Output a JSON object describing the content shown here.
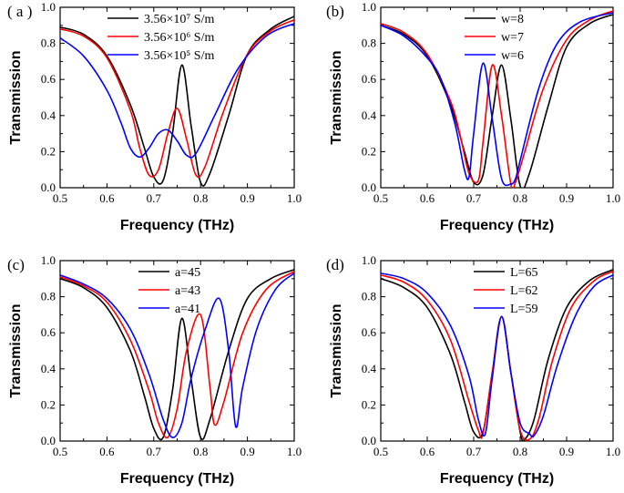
{
  "chart_data": [
    {
      "type": "line",
      "panel_label": "( a )",
      "xlabel": "Frequency (THz)",
      "ylabel": "Transmission",
      "xlim": [
        0.5,
        1.0
      ],
      "ylim": [
        0.0,
        1.0
      ],
      "xticks": [
        "0.5",
        "0.6",
        "0.7",
        "0.8",
        "0.9",
        "1.0"
      ],
      "yticks": [
        "0.0",
        "0.2",
        "0.4",
        "0.6",
        "0.8",
        "1.0"
      ],
      "legend_position": "top-right",
      "series": [
        {
          "name": "3.56×10⁷ S/m",
          "color": "#000000",
          "x": [
            0.5,
            0.55,
            0.6,
            0.65,
            0.68,
            0.7,
            0.72,
            0.74,
            0.76,
            0.78,
            0.8,
            0.82,
            0.86,
            0.9,
            0.95,
            1.0
          ],
          "y": [
            0.89,
            0.85,
            0.73,
            0.46,
            0.22,
            0.06,
            0.04,
            0.3,
            0.68,
            0.34,
            0.03,
            0.08,
            0.4,
            0.74,
            0.88,
            0.95
          ]
        },
        {
          "name": "3.56×10⁶ S/m",
          "color": "#ff0000",
          "x": [
            0.5,
            0.55,
            0.6,
            0.65,
            0.67,
            0.69,
            0.71,
            0.73,
            0.75,
            0.77,
            0.79,
            0.81,
            0.85,
            0.9,
            0.95,
            1.0
          ],
          "y": [
            0.88,
            0.84,
            0.72,
            0.43,
            0.22,
            0.07,
            0.1,
            0.3,
            0.44,
            0.27,
            0.07,
            0.12,
            0.43,
            0.74,
            0.87,
            0.93
          ]
        },
        {
          "name": "3.56×10⁵ S/m",
          "color": "#0000ff",
          "x": [
            0.5,
            0.55,
            0.6,
            0.63,
            0.65,
            0.67,
            0.69,
            0.71,
            0.73,
            0.75,
            0.77,
            0.79,
            0.83,
            0.88,
            0.94,
            1.0
          ],
          "y": [
            0.83,
            0.73,
            0.54,
            0.36,
            0.22,
            0.17,
            0.22,
            0.3,
            0.32,
            0.26,
            0.18,
            0.19,
            0.4,
            0.66,
            0.84,
            0.91
          ]
        }
      ]
    },
    {
      "type": "line",
      "panel_label": "(b)",
      "xlabel": "Frequency (THz)",
      "ylabel": "Transmission",
      "xlim": [
        0.5,
        1.0
      ],
      "ylim": [
        0.0,
        1.0
      ],
      "xticks": [
        "0.5",
        "0.6",
        "0.7",
        "0.8",
        "0.9",
        "1.0"
      ],
      "yticks": [
        "0.0",
        "0.2",
        "0.4",
        "0.6",
        "0.8",
        "1.0"
      ],
      "legend_position": "top-right",
      "series": [
        {
          "name": "w=8",
          "color": "#000000",
          "x": [
            0.5,
            0.55,
            0.6,
            0.65,
            0.68,
            0.7,
            0.72,
            0.74,
            0.76,
            0.78,
            0.8,
            0.82,
            0.86,
            0.9,
            0.95,
            1.0
          ],
          "y": [
            0.9,
            0.85,
            0.73,
            0.46,
            0.2,
            0.03,
            0.07,
            0.4,
            0.68,
            0.38,
            0.01,
            0.08,
            0.45,
            0.78,
            0.91,
            0.96
          ]
        },
        {
          "name": "w=7",
          "color": "#ff0000",
          "x": [
            0.5,
            0.55,
            0.6,
            0.65,
            0.67,
            0.69,
            0.71,
            0.72,
            0.74,
            0.76,
            0.78,
            0.79,
            0.81,
            0.85,
            0.9,
            0.95,
            1.0
          ],
          "y": [
            0.91,
            0.86,
            0.74,
            0.48,
            0.3,
            0.08,
            0.04,
            0.25,
            0.68,
            0.4,
            0.02,
            0.03,
            0.2,
            0.55,
            0.82,
            0.93,
            0.98
          ]
        },
        {
          "name": "w=6",
          "color": "#0000ff",
          "x": [
            0.5,
            0.55,
            0.6,
            0.63,
            0.66,
            0.68,
            0.69,
            0.7,
            0.72,
            0.74,
            0.76,
            0.78,
            0.79,
            0.8,
            0.84,
            0.88,
            0.93,
            1.0
          ],
          "y": [
            0.9,
            0.84,
            0.72,
            0.6,
            0.35,
            0.1,
            0.06,
            0.3,
            0.69,
            0.38,
            0.05,
            0.02,
            0.05,
            0.15,
            0.55,
            0.8,
            0.92,
            0.97
          ]
        }
      ]
    },
    {
      "type": "line",
      "panel_label": "(c)",
      "xlabel": "Frequency (THz)",
      "ylabel": "Transmission",
      "xlim": [
        0.5,
        1.0
      ],
      "ylim": [
        0.0,
        1.0
      ],
      "xticks": [
        "0.5",
        "0.6",
        "0.7",
        "0.8",
        "0.9",
        "1.0"
      ],
      "yticks": [
        "0.0",
        "0.2",
        "0.4",
        "0.6",
        "0.8",
        "1.0"
      ],
      "legend_position": "top-center",
      "series": [
        {
          "name": "a=45",
          "color": "#000000",
          "x": [
            0.5,
            0.55,
            0.6,
            0.65,
            0.68,
            0.7,
            0.72,
            0.74,
            0.76,
            0.78,
            0.8,
            0.82,
            0.86,
            0.9,
            0.95,
            1.0
          ],
          "y": [
            0.9,
            0.85,
            0.74,
            0.5,
            0.25,
            0.07,
            0.02,
            0.28,
            0.68,
            0.34,
            0.02,
            0.12,
            0.5,
            0.79,
            0.9,
            0.95
          ]
        },
        {
          "name": "a=43",
          "color": "#ff0000",
          "x": [
            0.5,
            0.55,
            0.6,
            0.65,
            0.69,
            0.71,
            0.73,
            0.75,
            0.77,
            0.8,
            0.82,
            0.83,
            0.85,
            0.89,
            0.94,
            1.0
          ],
          "y": [
            0.91,
            0.86,
            0.77,
            0.56,
            0.28,
            0.1,
            0.02,
            0.18,
            0.5,
            0.7,
            0.3,
            0.09,
            0.22,
            0.6,
            0.84,
            0.94
          ]
        },
        {
          "name": "a=41",
          "color": "#0000ff",
          "x": [
            0.5,
            0.55,
            0.6,
            0.65,
            0.69,
            0.72,
            0.74,
            0.76,
            0.78,
            0.81,
            0.84,
            0.86,
            0.875,
            0.89,
            0.92,
            0.96,
            1.0
          ],
          "y": [
            0.92,
            0.87,
            0.79,
            0.62,
            0.37,
            0.12,
            0.02,
            0.1,
            0.35,
            0.62,
            0.79,
            0.5,
            0.08,
            0.3,
            0.62,
            0.84,
            0.93
          ]
        }
      ]
    },
    {
      "type": "line",
      "panel_label": "(d)",
      "xlabel": "Frequency (THz)",
      "ylabel": "Transmission",
      "xlim": [
        0.5,
        1.0
      ],
      "ylim": [
        0.0,
        1.0
      ],
      "xticks": [
        "0.5",
        "0.6",
        "0.7",
        "0.8",
        "0.9",
        "1.0"
      ],
      "yticks": [
        "0.0",
        "0.2",
        "0.4",
        "0.6",
        "0.8",
        "1.0"
      ],
      "legend_position": "top-center",
      "series": [
        {
          "name": "L=65",
          "color": "#000000",
          "x": [
            0.5,
            0.55,
            0.6,
            0.65,
            0.68,
            0.7,
            0.72,
            0.74,
            0.76,
            0.78,
            0.8,
            0.81,
            0.83,
            0.86,
            0.9,
            0.95,
            1.0
          ],
          "y": [
            0.9,
            0.85,
            0.74,
            0.48,
            0.22,
            0.05,
            0.05,
            0.38,
            0.69,
            0.38,
            0.05,
            0.01,
            0.12,
            0.45,
            0.74,
            0.89,
            0.95
          ]
        },
        {
          "name": "L=62",
          "color": "#ff0000",
          "x": [
            0.5,
            0.55,
            0.6,
            0.65,
            0.69,
            0.71,
            0.72,
            0.74,
            0.76,
            0.78,
            0.8,
            0.82,
            0.84,
            0.87,
            0.91,
            0.96,
            1.0
          ],
          "y": [
            0.92,
            0.88,
            0.78,
            0.56,
            0.22,
            0.06,
            0.04,
            0.38,
            0.69,
            0.38,
            0.06,
            0.01,
            0.12,
            0.45,
            0.74,
            0.89,
            0.94
          ]
        },
        {
          "name": "L=59",
          "color": "#0000ff",
          "x": [
            0.5,
            0.55,
            0.6,
            0.65,
            0.69,
            0.71,
            0.725,
            0.74,
            0.76,
            0.78,
            0.8,
            0.82,
            0.83,
            0.85,
            0.88,
            0.92,
            0.96,
            1.0
          ],
          "y": [
            0.93,
            0.9,
            0.82,
            0.64,
            0.36,
            0.12,
            0.04,
            0.35,
            0.69,
            0.38,
            0.1,
            0.04,
            0.03,
            0.14,
            0.42,
            0.7,
            0.86,
            0.92
          ]
        }
      ]
    }
  ]
}
